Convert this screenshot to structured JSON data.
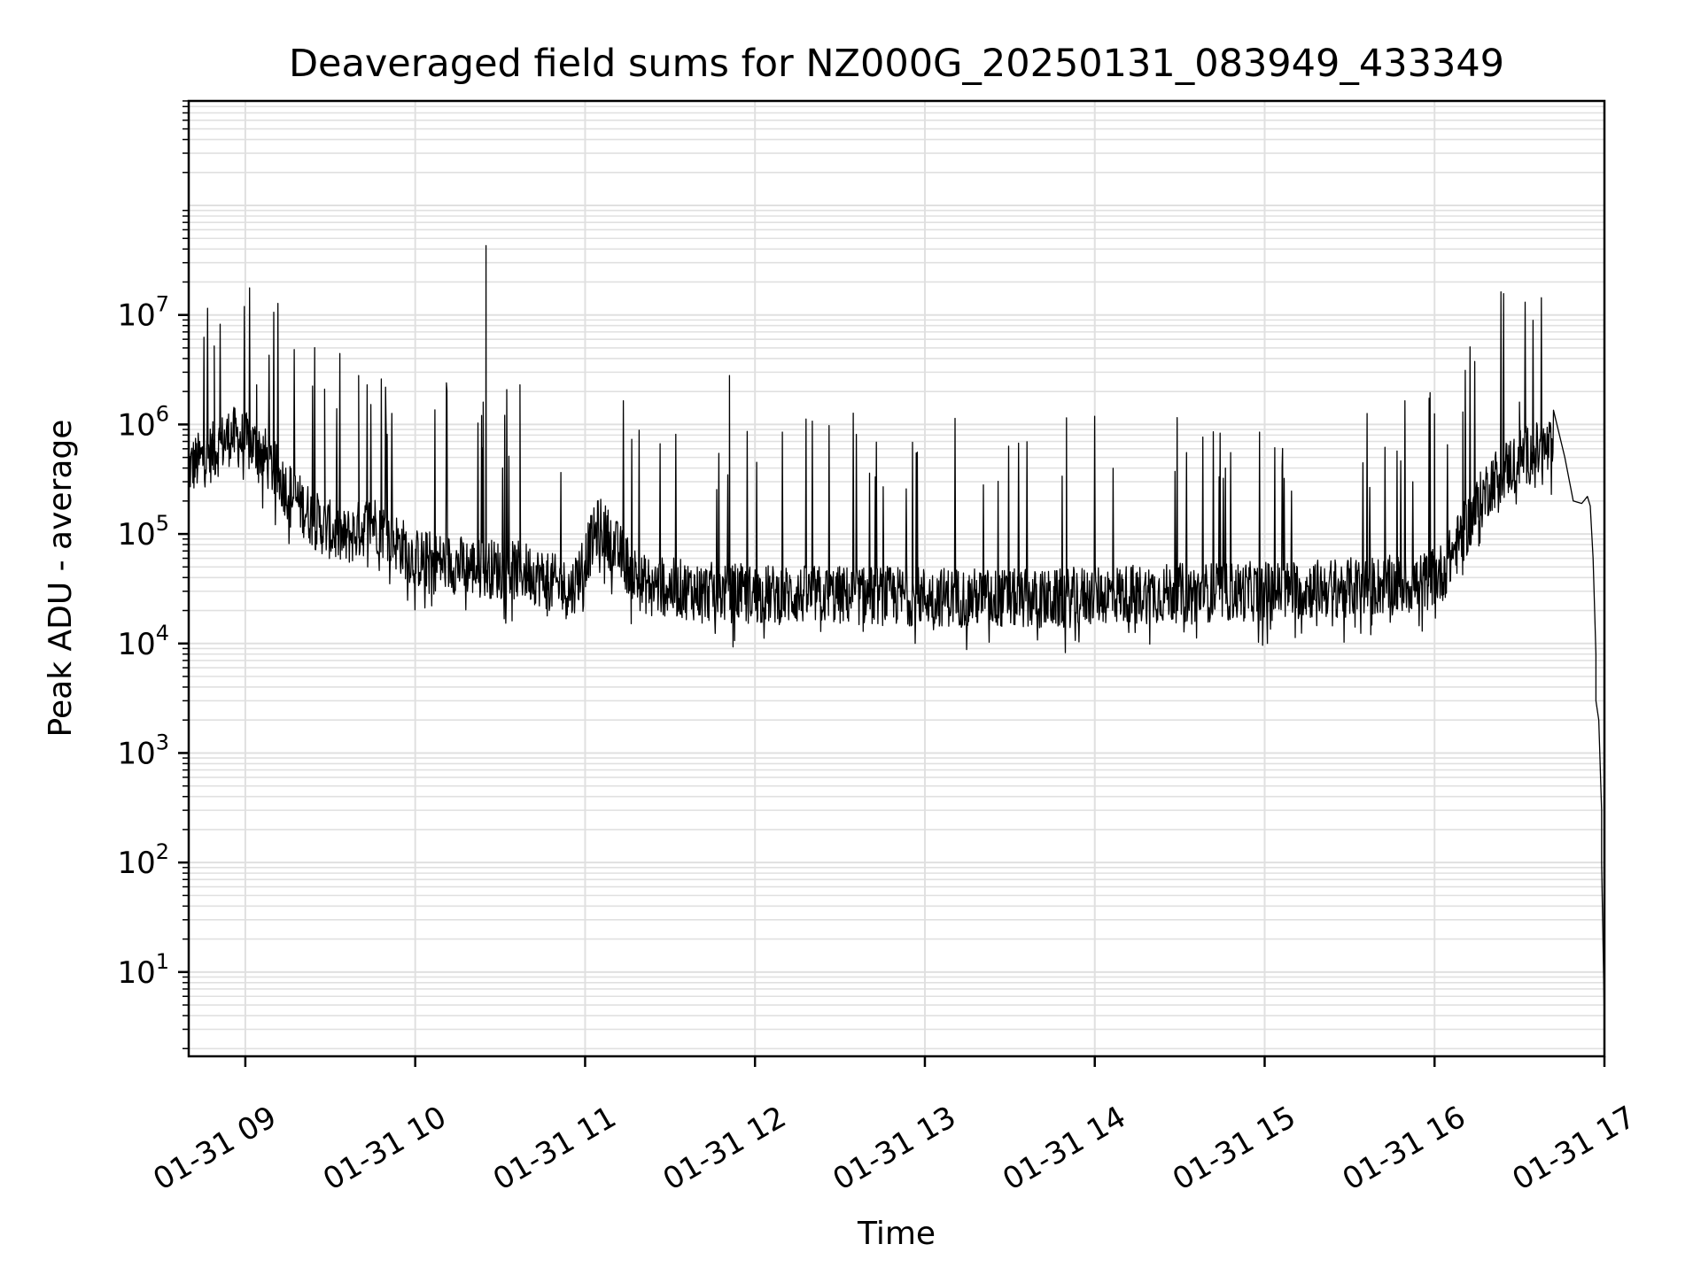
{
  "chart_data": {
    "type": "line",
    "title": "Deaveraged field sums for NZ000G_20250131_083949_433349",
    "xlabel": "Time",
    "ylabel": "Peak ADU - average",
    "y_scale": "log",
    "ylim": [
      1.7,
      900000000
    ],
    "xlim": [
      "2025-01-31 08:40",
      "2025-01-31 17:00"
    ],
    "grid": true,
    "grid_minor": true,
    "line_color": "#000000",
    "grid_color": "#e0e0e0",
    "x_ticks": [
      {
        "t": "2025-01-31 09:00",
        "label": "01-31 09"
      },
      {
        "t": "2025-01-31 10:00",
        "label": "01-31 10"
      },
      {
        "t": "2025-01-31 11:00",
        "label": "01-31 11"
      },
      {
        "t": "2025-01-31 12:00",
        "label": "01-31 12"
      },
      {
        "t": "2025-01-31 13:00",
        "label": "01-31 13"
      },
      {
        "t": "2025-01-31 14:00",
        "label": "01-31 14"
      },
      {
        "t": "2025-01-31 15:00",
        "label": "01-31 15"
      },
      {
        "t": "2025-01-31 16:00",
        "label": "01-31 16"
      },
      {
        "t": "2025-01-31 17:00",
        "label": "01-31 17"
      }
    ],
    "y_ticks": [
      {
        "value": 10,
        "base": "10",
        "exp": "1"
      },
      {
        "value": 100,
        "base": "10",
        "exp": "2"
      },
      {
        "value": 1000,
        "base": "10",
        "exp": "3"
      },
      {
        "value": 10000,
        "base": "10",
        "exp": "4"
      },
      {
        "value": 100000,
        "base": "10",
        "exp": "5"
      },
      {
        "value": 1000000,
        "base": "10",
        "exp": "6"
      },
      {
        "value": 10000000,
        "base": "10",
        "exp": "7"
      }
    ],
    "baseline": [
      {
        "t": "2025-01-31 08:40",
        "y": 400000
      },
      {
        "t": "2025-01-31 08:48",
        "y": 550000
      },
      {
        "t": "2025-01-31 08:55",
        "y": 800000
      },
      {
        "t": "2025-01-31 09:05",
        "y": 600000
      },
      {
        "t": "2025-01-31 09:15",
        "y": 250000
      },
      {
        "t": "2025-01-31 09:25",
        "y": 130000
      },
      {
        "t": "2025-01-31 09:35",
        "y": 90000
      },
      {
        "t": "2025-01-31 09:45",
        "y": 130000
      },
      {
        "t": "2025-01-31 10:00",
        "y": 60000
      },
      {
        "t": "2025-01-31 10:20",
        "y": 50000
      },
      {
        "t": "2025-01-31 10:40",
        "y": 45000
      },
      {
        "t": "2025-01-31 10:55",
        "y": 30000
      },
      {
        "t": "2025-01-31 11:05",
        "y": 120000
      },
      {
        "t": "2025-01-31 11:20",
        "y": 35000
      },
      {
        "t": "2025-01-31 11:40",
        "y": 30000
      },
      {
        "t": "2025-01-31 12:00",
        "y": 28000
      },
      {
        "t": "2025-01-31 13:00",
        "y": 27000
      },
      {
        "t": "2025-01-31 13:45",
        "y": 25000
      },
      {
        "t": "2025-01-31 14:00",
        "y": 28000
      },
      {
        "t": "2025-01-31 15:00",
        "y": 30000
      },
      {
        "t": "2025-01-31 15:55",
        "y": 35000
      },
      {
        "t": "2025-01-31 16:03",
        "y": 45000
      },
      {
        "t": "2025-01-31 16:10",
        "y": 100000
      },
      {
        "t": "2025-01-31 16:20",
        "y": 300000
      },
      {
        "t": "2025-01-31 16:30",
        "y": 500000
      },
      {
        "t": "2025-01-31 16:40",
        "y": 600000
      }
    ],
    "spikes": [
      {
        "t": "2025-01-31 08:49",
        "y": 5200000
      },
      {
        "t": "2025-01-31 09:04",
        "y": 2300000
      },
      {
        "t": "2025-01-31 09:28",
        "y": 2100000
      },
      {
        "t": "2025-01-31 09:40",
        "y": 2800000
      },
      {
        "t": "2025-01-31 10:24",
        "y": 1600000
      },
      {
        "t": "2025-01-31 10:25",
        "y": 43000000
      },
      {
        "t": "2025-01-31 10:37",
        "y": 2300000
      },
      {
        "t": "2025-01-31 11:51",
        "y": 2800000
      },
      {
        "t": "2025-01-31 13:50",
        "y": 1150000
      },
      {
        "t": "2025-01-31 16:00",
        "y": 1250000
      },
      {
        "t": "2025-01-31 16:10",
        "y": 1300000
      },
      {
        "t": "2025-01-31 16:30",
        "y": 1600000
      }
    ],
    "tail": [
      {
        "t": "2025-01-31 16:42",
        "y": 1350000
      },
      {
        "t": "2025-01-31 16:46",
        "y": 500000
      },
      {
        "t": "2025-01-31 16:49",
        "y": 200000
      },
      {
        "t": "2025-01-31 16:52",
        "y": 190000
      },
      {
        "t": "2025-01-31 16:54",
        "y": 220000
      },
      {
        "t": "2025-01-31 16:55",
        "y": 180000
      },
      {
        "t": "2025-01-31 16:56",
        "y": 60000
      },
      {
        "t": "2025-01-31 16:57",
        "y": 8000
      },
      {
        "t": "2025-01-31 16:57",
        "y": 3000
      },
      {
        "t": "2025-01-31 16:58",
        "y": 2000
      },
      {
        "t": "2025-01-31 16:59",
        "y": 300
      },
      {
        "t": "2025-01-31 16:59",
        "y": 100
      },
      {
        "t": "2025-01-31 17:00",
        "y": 3.5
      }
    ]
  }
}
